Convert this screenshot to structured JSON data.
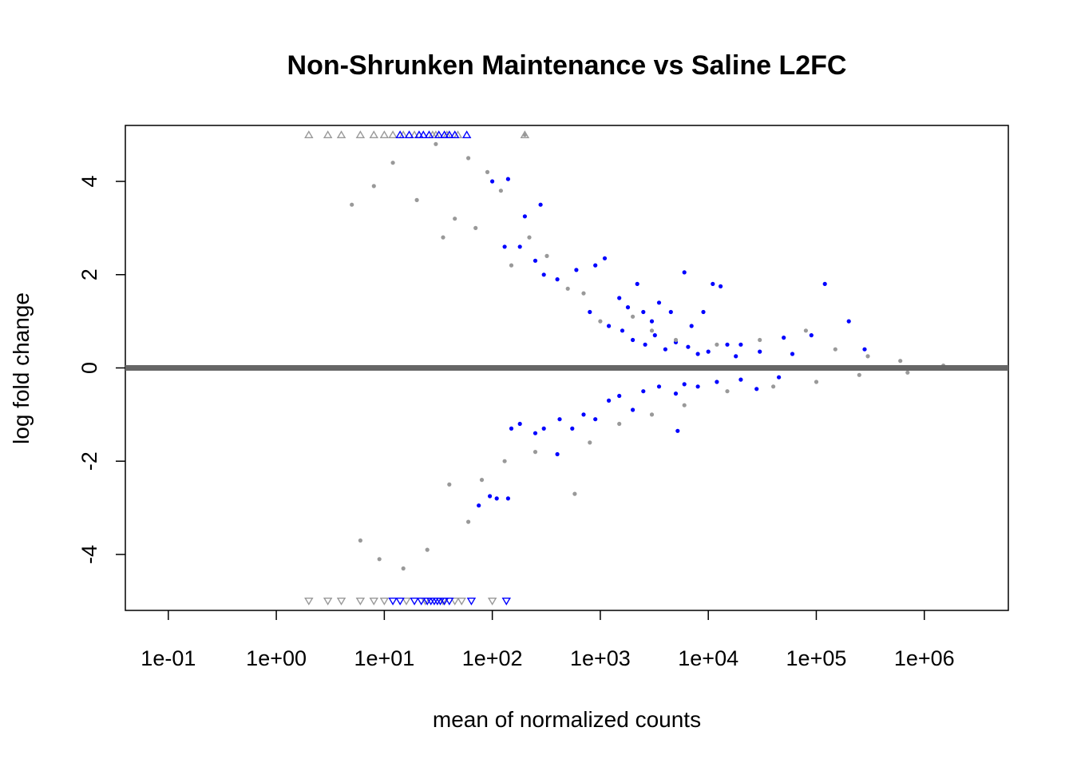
{
  "chart_data": {
    "type": "scatter",
    "title": "Non-Shrunken Maintenance vs Saline L2FC",
    "xlabel": "mean of normalized counts",
    "ylabel": "log fold change",
    "x_scale": "log10",
    "xlim": [
      0.04,
      6000000
    ],
    "ylim": [
      -5.2,
      5.2
    ],
    "x_ticks": [
      {
        "value": 0.1,
        "label": "1e-01"
      },
      {
        "value": 1,
        "label": "1e+00"
      },
      {
        "value": 10,
        "label": "1e+01"
      },
      {
        "value": 100,
        "label": "1e+02"
      },
      {
        "value": 1000,
        "label": "1e+03"
      },
      {
        "value": 10000,
        "label": "1e+04"
      },
      {
        "value": 100000,
        "label": "1e+05"
      },
      {
        "value": 1000000,
        "label": "1e+06"
      }
    ],
    "y_ticks": [
      {
        "value": -4,
        "label": "-4"
      },
      {
        "value": -2,
        "label": "-2"
      },
      {
        "value": 0,
        "label": "0"
      },
      {
        "value": 2,
        "label": "2"
      },
      {
        "value": 4,
        "label": "4"
      }
    ],
    "reference_line": {
      "y": 0,
      "color": "#666666"
    },
    "grid": false,
    "legend": "none",
    "colors": {
      "not_significant": "#999999",
      "significant": "#0000ff"
    },
    "series": [
      {
        "significant": true,
        "points": [
          [
            100,
            4.0
          ],
          [
            140,
            4.05
          ],
          [
            200,
            3.25
          ],
          [
            280,
            3.5
          ],
          [
            180,
            2.6
          ],
          [
            130,
            2.6
          ],
          [
            250,
            2.3
          ],
          [
            300,
            2.0
          ],
          [
            400,
            1.9
          ],
          [
            600,
            2.1
          ],
          [
            900,
            2.2
          ],
          [
            1100,
            2.35
          ],
          [
            1500,
            1.5
          ],
          [
            1800,
            1.3
          ],
          [
            2200,
            1.8
          ],
          [
            2500,
            1.2
          ],
          [
            3000,
            1.0
          ],
          [
            3500,
            1.4
          ],
          [
            4500,
            1.2
          ],
          [
            6000,
            2.05
          ],
          [
            7000,
            0.9
          ],
          [
            9000,
            1.2
          ],
          [
            11000,
            1.8
          ],
          [
            13000,
            1.75
          ],
          [
            20000,
            0.5
          ],
          [
            30000,
            0.35
          ],
          [
            50000,
            0.65
          ],
          [
            60000,
            0.3
          ],
          [
            90000,
            0.7
          ],
          [
            120000,
            1.8
          ],
          [
            200000,
            1.0
          ],
          [
            280000,
            0.4
          ],
          [
            800,
            1.2
          ],
          [
            1200,
            0.9
          ],
          [
            1600,
            0.8
          ],
          [
            2000,
            0.6
          ],
          [
            2600,
            0.5
          ],
          [
            3200,
            0.7
          ],
          [
            4000,
            0.4
          ],
          [
            5000,
            0.55
          ],
          [
            6500,
            0.45
          ],
          [
            8000,
            0.3
          ],
          [
            10000,
            0.35
          ],
          [
            15000,
            0.5
          ],
          [
            18000,
            0.25
          ],
          [
            150,
            -1.3
          ],
          [
            180,
            -1.2
          ],
          [
            250,
            -1.4
          ],
          [
            300,
            -1.3
          ],
          [
            420,
            -1.1
          ],
          [
            550,
            -1.3
          ],
          [
            700,
            -1.0
          ],
          [
            900,
            -1.1
          ],
          [
            1200,
            -0.7
          ],
          [
            1500,
            -0.6
          ],
          [
            2000,
            -0.9
          ],
          [
            2500,
            -0.5
          ],
          [
            3500,
            -0.4
          ],
          [
            5000,
            -0.55
          ],
          [
            6000,
            -0.35
          ],
          [
            8000,
            -0.4
          ],
          [
            12000,
            -0.3
          ],
          [
            20000,
            -0.25
          ],
          [
            28000,
            -0.45
          ],
          [
            45000,
            -0.2
          ],
          [
            400,
            -1.85
          ],
          [
            5200,
            -1.35
          ],
          [
            110,
            -2.8
          ],
          [
            75,
            -2.95
          ],
          [
            140,
            -2.8
          ],
          [
            95,
            -2.75
          ]
        ]
      },
      {
        "significant": false,
        "points": [
          [
            200,
            5.0
          ],
          [
            580,
            -2.7
          ],
          [
            120,
            3.8
          ],
          [
            90,
            4.2
          ],
          [
            60,
            4.5
          ],
          [
            30,
            4.8
          ],
          [
            45,
            3.2
          ],
          [
            70,
            3.0
          ],
          [
            35,
            2.8
          ],
          [
            150,
            2.2
          ],
          [
            220,
            2.8
          ],
          [
            320,
            2.4
          ],
          [
            500,
            1.7
          ],
          [
            700,
            1.6
          ],
          [
            1000,
            1.0
          ],
          [
            2000,
            1.1
          ],
          [
            3000,
            0.8
          ],
          [
            5000,
            0.6
          ],
          [
            12000,
            0.5
          ],
          [
            30000,
            0.6
          ],
          [
            80000,
            0.8
          ],
          [
            150000,
            0.4
          ],
          [
            300000,
            0.25
          ],
          [
            600000,
            0.15
          ],
          [
            1500000,
            0.05
          ],
          [
            40,
            -2.5
          ],
          [
            60,
            -3.3
          ],
          [
            80,
            -2.4
          ],
          [
            130,
            -2.0
          ],
          [
            250,
            -1.8
          ],
          [
            800,
            -1.6
          ],
          [
            1500,
            -1.2
          ],
          [
            3000,
            -1.0
          ],
          [
            6000,
            -0.8
          ],
          [
            15000,
            -0.5
          ],
          [
            40000,
            -0.4
          ],
          [
            100000,
            -0.3
          ],
          [
            250000,
            -0.15
          ],
          [
            700000,
            -0.1
          ],
          [
            20,
            3.6
          ],
          [
            25,
            -3.9
          ],
          [
            12,
            4.4
          ],
          [
            15,
            -4.3
          ],
          [
            8,
            3.9
          ],
          [
            9,
            -4.1
          ],
          [
            5,
            3.5
          ],
          [
            6,
            -3.7
          ]
        ]
      }
    ],
    "capped_points": {
      "upper": {
        "y": 5,
        "marker": "triangle-up",
        "significant_x": [
          14,
          17,
          21,
          23,
          26,
          32,
          36,
          40,
          45,
          58
        ],
        "not_significant_x": [
          2,
          3,
          4,
          6,
          8,
          10,
          12,
          15,
          19,
          28,
          30,
          38,
          48,
          200
        ]
      },
      "lower": {
        "y": -5,
        "marker": "triangle-down",
        "significant_x": [
          12,
          14,
          19,
          22,
          25,
          27,
          29,
          31,
          33,
          36,
          40,
          64,
          135
        ],
        "not_significant_x": [
          2,
          3,
          4,
          6,
          8,
          10,
          16,
          24,
          35,
          45,
          52,
          100
        ]
      }
    }
  }
}
